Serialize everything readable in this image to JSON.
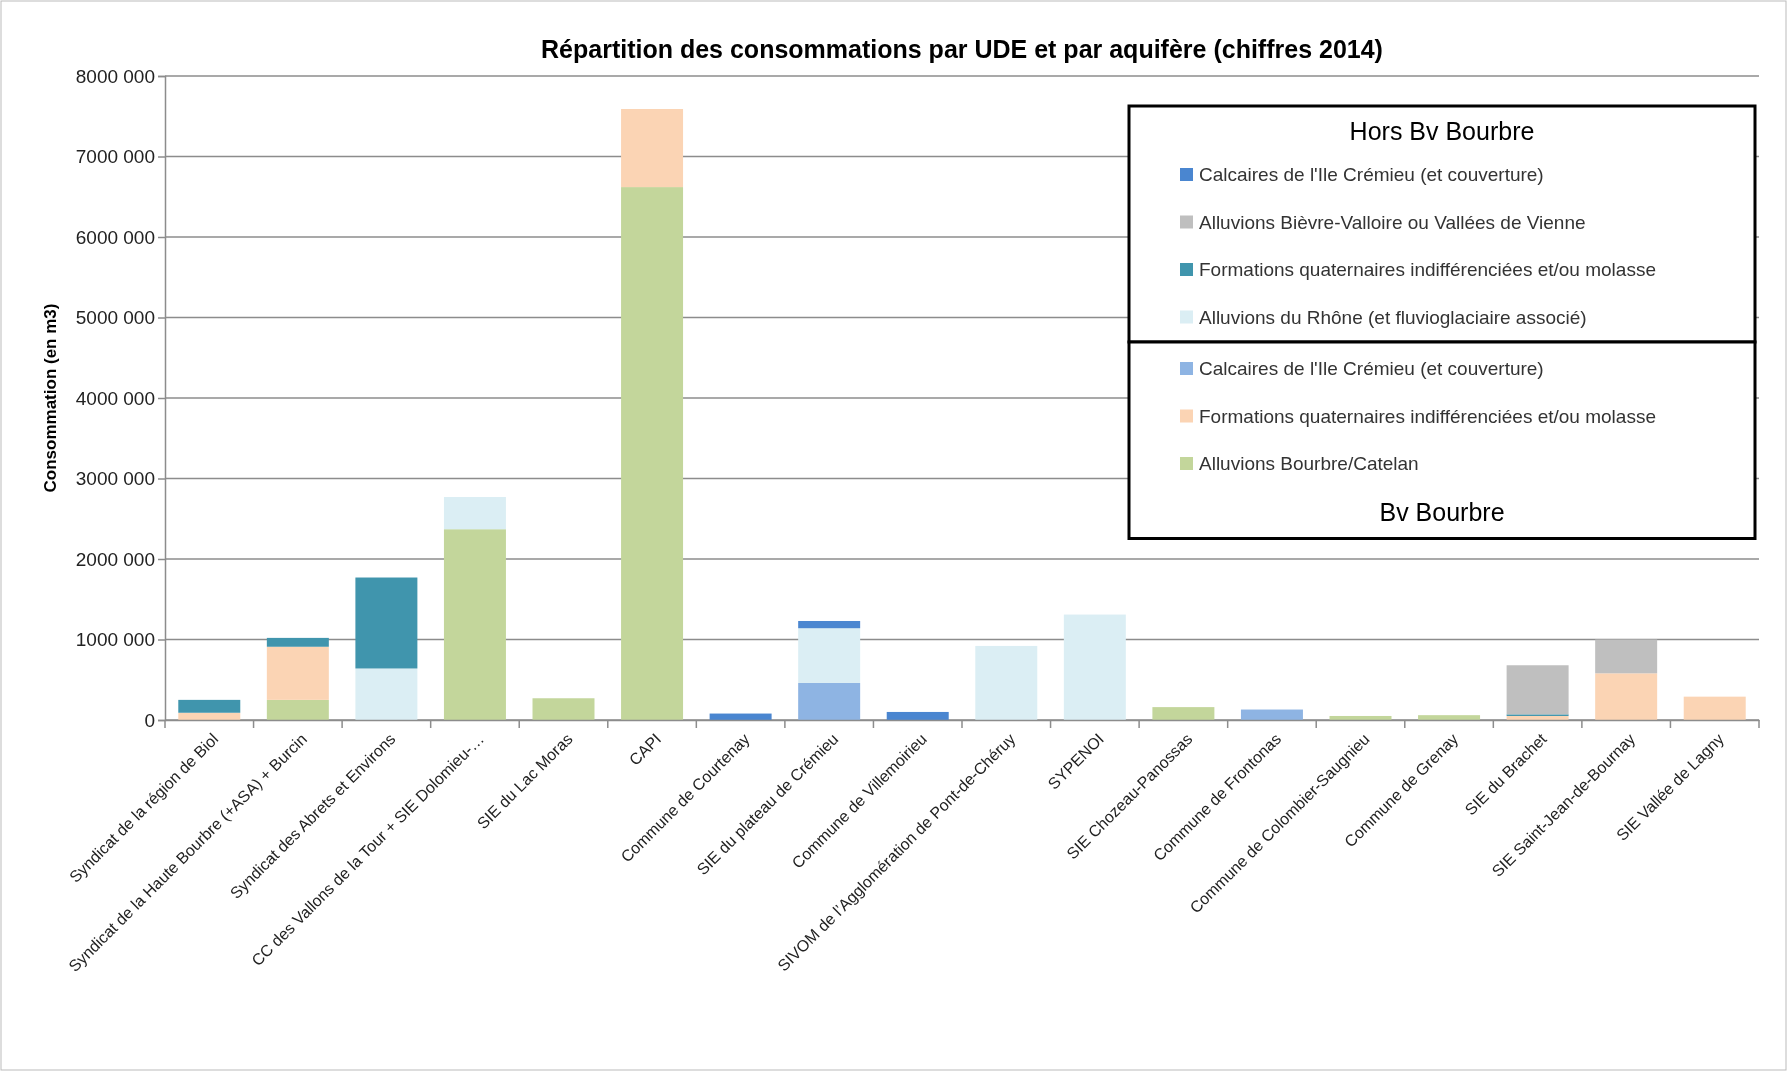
{
  "chart_data": {
    "type": "bar",
    "title": "Répartition des consommations par UDE et par aquifère (chiffres 2014)",
    "ylabel": "Consommation  (en m3)",
    "categories": [
      "Syndicat de la région de Biol",
      "Syndicat de la Haute Bourbre (+ASA) + Burcin",
      "Syndicat des Abrets et Environs",
      "CC des  Vallons de la Tour + SIE Dolomieu-…",
      "SIE du Lac Moras",
      "CAPI",
      "Commune de Courtenay",
      "SIE du plateau de Crémieu",
      "Commune de Villemoirieu",
      "SIVOM de l’Agglomération de Pont-de-Chéruy",
      "SYPENOI",
      "SIE Chozeau-Panossas",
      "Commune de Frontonas",
      "Commune de Colombier-Saugnieu",
      "Commune de Grenay",
      "SIE du Brachet",
      "SIE Saint-Jean-de-Bournay",
      "SIE Vallée de Lagny"
    ],
    "stacked": true,
    "ylim": [
      0,
      8000000
    ],
    "yticks": [
      0,
      {
        "value": 1000000,
        "label": "1000 000"
      },
      {
        "value": 2000000,
        "label": "2000 000"
      },
      {
        "value": 3000000,
        "label": "3000 000"
      },
      {
        "value": 4000000,
        "label": "4000 000"
      },
      {
        "value": 5000000,
        "label": "5000 000"
      },
      {
        "value": 6000000,
        "label": "6000 000"
      },
      {
        "value": 7000000,
        "label": "7000 000"
      },
      {
        "value": 8000000,
        "label": "8000 000"
      }
    ],
    "grid": "y",
    "legend": "top right",
    "legend_title": "Hors Bv Bourbre",
    "annotations": [
      "Bv Bourbre"
    ],
    "series": [
      {
        "name": "Alluvions Bourbre/Catelan",
        "color": "#c3d69b",
        "values": [
          null,
          250000,
          null,
          2370000,
          270000,
          6620000,
          null,
          null,
          null,
          null,
          null,
          160000,
          null,
          50000,
          60000,
          null,
          null,
          null
        ]
      },
      {
        "name": "Formations quaternaires indifférenciées et/ou molasse",
        "color": "#fbd4b4",
        "values": [
          90000,
          660000,
          null,
          null,
          null,
          970000,
          null,
          null,
          null,
          null,
          null,
          null,
          null,
          null,
          null,
          50000,
          580000,
          290000
        ]
      },
      {
        "name": "Calcaires de l'Ile Crémieu (et couverture)",
        "color": "#8eb4e3",
        "values": [
          null,
          null,
          null,
          null,
          null,
          null,
          null,
          460000,
          null,
          null,
          null,
          null,
          130000,
          null,
          null,
          null,
          null,
          null
        ]
      },
      {
        "name": "Alluvions du Rhône (et fluvioglaciaire associé)",
        "color": "#dbeef4",
        "values": [
          null,
          null,
          640000,
          400000,
          null,
          null,
          null,
          680000,
          null,
          920000,
          1310000,
          null,
          null,
          null,
          null,
          null,
          null,
          null
        ]
      },
      {
        "name": "Formations quaternaires indifférenciées et/ou molasse",
        "color": "#4095ad",
        "values": [
          160000,
          110000,
          1130000,
          null,
          null,
          null,
          null,
          null,
          null,
          null,
          null,
          null,
          null,
          null,
          null,
          20000,
          null,
          null
        ]
      },
      {
        "name": "Alluvions Bièvre-Valloire ou Vallées de Vienne",
        "color": "#bfbfbf",
        "values": [
          null,
          null,
          null,
          null,
          null,
          null,
          null,
          null,
          null,
          null,
          null,
          null,
          null,
          null,
          null,
          610000,
          420000,
          null
        ]
      },
      {
        "name": "Calcaires de l'Ile Crémieu (et couverture)",
        "color": "#4a86d0",
        "values": [
          null,
          null,
          null,
          null,
          null,
          null,
          80000,
          90000,
          100000,
          null,
          null,
          null,
          null,
          null,
          null,
          null,
          null,
          null
        ]
      }
    ]
  }
}
